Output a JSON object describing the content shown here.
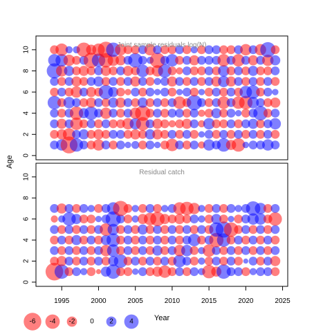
{
  "chart_data": {
    "type": "scatter",
    "ylabel": "Age",
    "xlabel": "Year",
    "x_ticks": [
      1995,
      2000,
      2005,
      2010,
      2015,
      2020,
      2025
    ],
    "y_ticks": [
      0,
      2,
      4,
      6,
      8,
      10
    ],
    "xlim": [
      1991.5,
      2025.7
    ],
    "colors": {
      "positive": "#0000ff",
      "negative": "#ff0000",
      "frame": "#000000",
      "title": "#888888"
    },
    "panels": [
      {
        "id": "top",
        "title": "Joint sample residuals log(N)",
        "ylim": [
          -0.4,
          11.3
        ],
        "years": [
          1994,
          1995,
          1996,
          1997,
          1998,
          1999,
          2000,
          2001,
          2002,
          2003,
          2004,
          2005,
          2006,
          2007,
          2008,
          2009,
          2010,
          2011,
          2012,
          2013,
          2014,
          2015,
          2016,
          2017,
          2018,
          2019,
          2020,
          2021,
          2022,
          2023,
          2024
        ],
        "ages": [
          1,
          2,
          3,
          4,
          5,
          6,
          7,
          8,
          9,
          10
        ],
        "residuals": [
          [
            1.5,
            2.5,
            -5.5,
            3.5,
            1.5,
            -1.5,
            -2.5,
            1.5,
            -1.5,
            1.5,
            0.8,
            1.2,
            -1.5,
            1.5,
            0.8,
            -1.5,
            -3,
            1.5,
            -1.5,
            1.5,
            -1,
            2.5,
            1.5,
            3.5,
            -2,
            -3.5,
            0.8,
            1.5,
            1.5,
            2.5,
            1.5
          ],
          [
            -1.5,
            -2,
            -3,
            1.5,
            2,
            -1.5,
            -2,
            -1.5,
            1.5,
            1.5,
            -1.5,
            -2,
            -1.5,
            2,
            -2,
            -1.5,
            1.5,
            -1.5,
            1.5,
            -1.5,
            0.8,
            1.5,
            -1.5,
            1.5,
            -1.5,
            1.5,
            -1.5,
            1.5,
            -1.5,
            1.5,
            -1.5
          ],
          [
            1.5,
            -2,
            1.5,
            -3,
            -1.5,
            1.5,
            -1.5,
            1.5,
            -1.5,
            -1.5,
            -2.5,
            2.5,
            -3.5,
            1.5,
            -2,
            -1.5,
            -1,
            -1.5,
            -2,
            1.5,
            -1,
            2.5,
            -1.5,
            -1.5,
            1.5,
            -1.5,
            1.5,
            2,
            -1.5,
            1.5,
            2.5
          ],
          [
            1.5,
            -1.5,
            1.5,
            -3.5,
            2,
            3.5,
            1.5,
            -2.5,
            1.5,
            -1.5,
            1.5,
            -2.5,
            -4.5,
            -1.5,
            1.5,
            -1.5,
            1.5,
            1.5,
            -1.5,
            1.5,
            -1,
            -1.5,
            2,
            -1.5,
            1.5,
            0.8,
            -1.5,
            1.5,
            4,
            -1.5,
            1.5
          ],
          [
            3.5,
            -1.5,
            2.5,
            1.5,
            -1.5,
            -2,
            1.5,
            -1.5,
            2,
            -2,
            1.5,
            -1.5,
            2,
            -1.5,
            1.5,
            -1.5,
            1.5,
            -3,
            -1.5,
            4.5,
            1.5,
            -1.5,
            1.5,
            -3,
            1.5,
            -3,
            -3.5,
            2.5,
            1.5,
            -1.5,
            -2
          ],
          [
            -1.5,
            1.5,
            -1.5,
            -2.5,
            1.5,
            -2,
            -1.5,
            4,
            2,
            -1.5,
            -0.8,
            1.5,
            -1.5,
            1.5,
            0.8,
            1.5,
            -1.5,
            0.8,
            1.5,
            -1.5,
            0.8,
            -1.5,
            1.5,
            -1.5,
            1.5,
            -1.5,
            3,
            3.5,
            -1.5,
            1.5,
            0.8
          ],
          [
            1.5,
            -1.5,
            1.5,
            -2,
            -1.5,
            1.5,
            2,
            -1.5,
            1.5,
            -1.5,
            1.5,
            -2,
            1.5,
            -1.5,
            1,
            1.5,
            -2,
            1.5,
            -1.5,
            1.5,
            -1.5,
            1.5,
            -2,
            2.5,
            -2,
            1.5,
            -1.5,
            1.5,
            -1.5,
            1.5,
            -1.5
          ],
          [
            4.5,
            -2.5,
            2,
            -1.5,
            -2,
            -1.5,
            1.5,
            -2,
            -1.5,
            1.5,
            -2,
            -1.5,
            3,
            -1.5,
            -2.5,
            3.5,
            -1.5,
            -1,
            1.5,
            -1.5,
            -1.5,
            1.5,
            -1.5,
            2.5,
            -1.5,
            1.5,
            -1.5,
            2,
            -1.5,
            -1.5,
            1.5
          ],
          [
            3,
            3,
            -2.5,
            -1.5,
            1.5,
            -4.5,
            3.5,
            -4,
            -2.5,
            -2,
            1.5,
            4,
            1.5,
            1,
            -4.5,
            1.5,
            3,
            -1.5,
            1.5,
            -2,
            1.5,
            1.5,
            1.5,
            -3,
            1.5,
            -3,
            1.5,
            -2,
            1.5,
            -2.5,
            2
          ],
          [
            -1.5,
            -3,
            1,
            1,
            -4,
            -2,
            -3,
            -5,
            4,
            -2.5,
            -1.5,
            -1.5,
            1.5,
            -2.5,
            1.5,
            -1.5,
            -1.5,
            1.5,
            -1.5,
            1,
            -1.5,
            1.5,
            1.5,
            -1.5,
            -1.5,
            1.5,
            -2.5,
            1.5,
            -2.5,
            4.5,
            -1.5
          ]
        ]
      },
      {
        "id": "bottom",
        "title": "Residual catch",
        "ylim": [
          -0.4,
          11.3
        ],
        "years": [
          1994,
          1995,
          1996,
          1997,
          1998,
          1999,
          2000,
          2001,
          2002,
          2003,
          2004,
          2005,
          2006,
          2007,
          2008,
          2009,
          2010,
          2011,
          2012,
          2013,
          2014,
          2015,
          2016,
          2017,
          2018,
          2019,
          2020,
          2021,
          2022,
          2023,
          2024
        ],
        "ages": [
          1,
          2,
          3,
          4,
          5,
          6,
          7
        ],
        "residuals": [
          [
            -6,
            4,
            -1.5,
            1.5,
            1,
            -1.5,
            -0.5,
            2,
            4,
            -1.5,
            -1.5,
            0.8,
            1.5,
            -1.5,
            -2,
            -3,
            -1.5,
            1.5,
            -1.5,
            1.5,
            1,
            -3.5,
            -2,
            4,
            1.5,
            1.5,
            -1.5,
            1,
            1.5,
            1.5,
            -1.5
          ],
          [
            -1.5,
            -2,
            1.5,
            -1.5,
            1.5,
            -1.5,
            1.5,
            -1.5,
            2,
            3.5,
            -1.5,
            1.5,
            -1.5,
            1.5,
            -1.5,
            1.5,
            -1.5,
            3,
            1.5,
            -1.5,
            1,
            -1.5,
            1.5,
            -1.5,
            1.5,
            -1.5,
            0.5,
            1.5,
            -1.5,
            1.5,
            -2
          ],
          [
            1.5,
            -1.5,
            1.5,
            -1.5,
            1.5,
            -1.5,
            1.5,
            -2.5,
            3,
            -1.5,
            1.5,
            -1.5,
            1.5,
            -1.5,
            2,
            -1.5,
            1.5,
            -2.5,
            2.5,
            -1.5,
            1,
            -3,
            1.5,
            -1.5,
            1.5,
            -1.5,
            1.5,
            -1.5,
            1.5,
            -1.5,
            1.5
          ],
          [
            -1.5,
            1.5,
            -1.5,
            2,
            -1.5,
            1.5,
            -1.5,
            2,
            3.5,
            -1.5,
            1.5,
            -1.5,
            1.5,
            -1.5,
            1.5,
            -1.5,
            1.5,
            -1.5,
            1.5,
            3,
            -1.5,
            1.5,
            -4,
            3.5,
            -1.5,
            1.5,
            -1.5,
            1.5,
            -1.5,
            1.5,
            -1.5
          ],
          [
            1.5,
            -1.5,
            1.5,
            -1.5,
            1.5,
            -1.5,
            1.5,
            -3,
            2.5,
            -1.5,
            1.5,
            -1.5,
            2,
            -1.5,
            1.5,
            -1.5,
            1.5,
            -1.5,
            1.5,
            -1.5,
            1.5,
            -1.5,
            4,
            5,
            -4,
            -1.5,
            1.5,
            -1.5,
            1.5,
            -1.5,
            1.5
          ],
          [
            -1,
            1,
            3.5,
            2,
            -1.5,
            -1.5,
            0.8,
            1.5,
            4.5,
            1.5,
            -1.5,
            1,
            -2,
            -3,
            -4,
            -2,
            -1.5,
            -2,
            -1.5,
            1.5,
            1,
            -1.5,
            2,
            -1.5,
            0.8,
            -1.5,
            1.5,
            2.5,
            2.5,
            -1.5,
            -3.5
          ],
          [
            1.5,
            -2,
            1.5,
            -1.5,
            1.5,
            1,
            -1.5,
            1.5,
            3,
            -4.5,
            -1.5,
            1,
            -1.5,
            1.5,
            -1.5,
            1,
            1.5,
            -3,
            -3.5,
            -2.5,
            1,
            -1.5,
            1.5,
            -1.5,
            1.5,
            1,
            1.5,
            4,
            2.5,
            -1.5,
            1.5
          ]
        ]
      }
    ],
    "legend": {
      "values": [
        -6,
        -4,
        -2,
        0,
        2,
        4
      ],
      "labels": [
        "-6",
        "-4",
        "-2",
        "0",
        "2",
        "4"
      ]
    }
  }
}
